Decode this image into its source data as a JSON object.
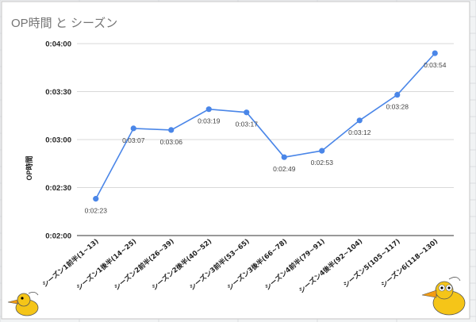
{
  "chart_data": {
    "type": "line",
    "title": "OP時間 と シーズン",
    "ylabel": "OP時間",
    "xlabel": "",
    "ylim": [
      "0:02:00",
      "0:04:00"
    ],
    "y_ticks": [
      "0:02:00",
      "0:02:30",
      "0:03:00",
      "0:03:30",
      "0:04:00"
    ],
    "grid": true,
    "legend": "none",
    "categories": [
      "シーズン1前半(1~13)",
      "シーズン1後半(14~25)",
      "シーズン2前半(26~39)",
      "シーズン2後半(40~52)",
      "シーズン3前半(53~65)",
      "シーズン3後半(66~78)",
      "シーズン4前半(79~91)",
      "シーズン4後半(92~104)",
      "シーズン5(105~117)",
      "シーズン6(118~130)"
    ],
    "values": [
      "0:02:23",
      "0:03:07",
      "0:03:06",
      "0:03:19",
      "0:03:17",
      "0:02:49",
      "0:02:53",
      "0:03:12",
      "0:03:28",
      "0:03:54"
    ],
    "series_color": "#4a86e8"
  }
}
